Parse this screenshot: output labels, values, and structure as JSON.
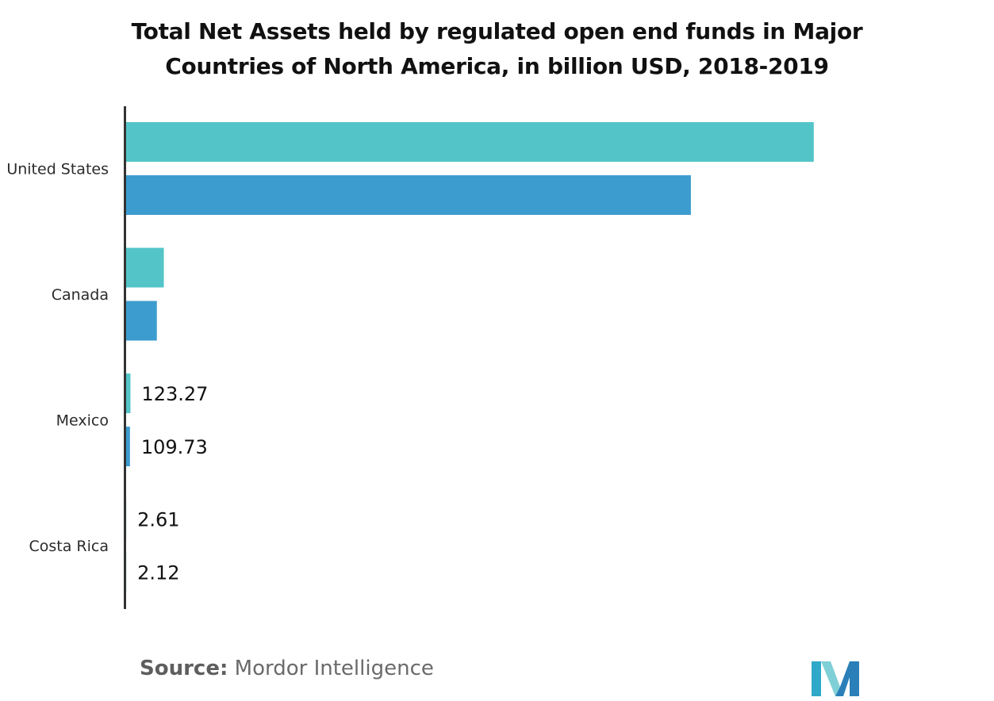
{
  "title_line1": "Total Net Assets held by regulated open end funds in Major",
  "title_line2": "Countries of North America, in billion USD, 2018-2019",
  "footer": {
    "source_label": "Source:",
    "source_value": "Mordor Intelligence"
  },
  "logo": {
    "icon": "mordor-intelligence-logo-icon"
  },
  "colors": {
    "series_2018": "#53c5c8",
    "series_2019": "#3d9ccf",
    "axis": "#333333",
    "label": "#2b2b2b"
  },
  "chart_data": {
    "type": "bar",
    "orientation": "horizontal",
    "title": "Total Net Assets held by regulated open end funds in Major Countries of North America, in billion USD, 2018-2019",
    "categories": [
      "United States",
      "Canada",
      "Mexico",
      "Costa Rica"
    ],
    "series": [
      {
        "key": "s2018",
        "values": [
          19700,
          1080,
          123.27,
          2.61
        ],
        "labels": [
          "",
          "",
          "123.27",
          "2.61"
        ]
      },
      {
        "key": "s2019",
        "values": [
          16180,
          880,
          109.73,
          2.12
        ],
        "labels": [
          "",
          "",
          "109.73",
          "2.12"
        ]
      }
    ],
    "xlim": [
      0,
      21000
    ],
    "grid": false,
    "legend": "none"
  }
}
